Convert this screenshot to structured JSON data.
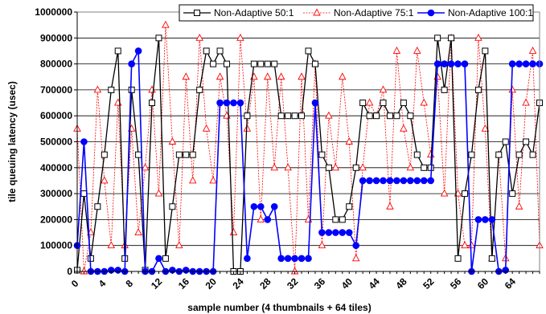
{
  "chart_data": {
    "type": "line",
    "title": "",
    "xlabel": "sample number (4 thumbnails + 64 tiles)",
    "ylabel": "tile queuing latency (usec)",
    "xlim": [
      0,
      68
    ],
    "ylim": [
      0,
      1000000
    ],
    "x_ticks": [
      0,
      4,
      8,
      12,
      16,
      20,
      24,
      28,
      32,
      36,
      40,
      44,
      48,
      52,
      56,
      60,
      64
    ],
    "x_tick_labels": [
      "0",
      "4",
      "8",
      "12",
      "16",
      "20",
      "24",
      "28",
      "32",
      "36",
      "40",
      "44",
      "48",
      "52",
      "56",
      "60",
      "64"
    ],
    "y_ticks": [
      0,
      100000,
      200000,
      300000,
      400000,
      500000,
      600000,
      700000,
      800000,
      900000,
      1000000
    ],
    "y_tick_labels": [
      "0",
      "100000",
      "200000",
      "300000",
      "400000",
      "500000",
      "600000",
      "700000",
      "800000",
      "900000",
      "1000000"
    ],
    "grid": "horizontal",
    "legend_position": "top",
    "series": [
      {
        "name": "Non-Adaptive 50:1",
        "color": "#000000",
        "marker": "square",
        "x": [
          0,
          1,
          2,
          3,
          4,
          5,
          6,
          7,
          8,
          9,
          10,
          11,
          12,
          13,
          14,
          15,
          16,
          17,
          18,
          19,
          20,
          21,
          22,
          23,
          24,
          25,
          26,
          27,
          28,
          29,
          30,
          31,
          32,
          33,
          34,
          35,
          36,
          37,
          38,
          39,
          40,
          41,
          42,
          43,
          44,
          45,
          46,
          47,
          48,
          49,
          50,
          51,
          52,
          53,
          54,
          55,
          56,
          57,
          58,
          59,
          60,
          61,
          62,
          63,
          64,
          65,
          66,
          67,
          68
        ],
        "values": [
          5000,
          300000,
          50000,
          250000,
          450000,
          700000,
          850000,
          50000,
          700000,
          450000,
          5000,
          650000,
          900000,
          50000,
          250000,
          450000,
          450000,
          450000,
          700000,
          850000,
          800000,
          850000,
          800000,
          0,
          0,
          600000,
          800000,
          800000,
          800000,
          800000,
          600000,
          600000,
          600000,
          600000,
          850000,
          800000,
          450000,
          400000,
          200000,
          200000,
          250000,
          400000,
          650000,
          600000,
          600000,
          650000,
          600000,
          600000,
          650000,
          600000,
          450000,
          400000,
          400000,
          900000,
          700000,
          900000,
          50000,
          300000,
          450000,
          700000,
          850000,
          50000,
          450000,
          500000,
          300000,
          450000,
          500000,
          450000,
          650000
        ]
      },
      {
        "name": "Non-Adaptive 75:1",
        "color": "#ff0000",
        "marker": "triangle",
        "x": [
          0,
          1,
          2,
          3,
          4,
          5,
          6,
          7,
          8,
          9,
          10,
          11,
          12,
          13,
          14,
          15,
          16,
          17,
          18,
          19,
          20,
          21,
          22,
          23,
          24,
          25,
          26,
          27,
          28,
          29,
          30,
          31,
          32,
          33,
          34,
          35,
          36,
          37,
          38,
          39,
          40,
          41,
          42,
          43,
          44,
          45,
          46,
          47,
          48,
          49,
          50,
          51,
          52,
          53,
          54,
          55,
          56,
          57,
          58,
          59,
          60,
          61,
          62,
          63,
          64,
          65,
          66,
          67,
          68
        ],
        "values": [
          550000,
          0,
          150000,
          700000,
          350000,
          100000,
          650000,
          100000,
          550000,
          150000,
          400000,
          700000,
          300000,
          950000,
          500000,
          100000,
          750000,
          350000,
          900000,
          550000,
          350000,
          750000,
          600000,
          150000,
          900000,
          550000,
          750000,
          200000,
          750000,
          400000,
          750000,
          400000,
          0,
          750000,
          200000,
          800000,
          100000,
          600000,
          400000,
          750000,
          500000,
          50000,
          400000,
          650000,
          600000,
          700000,
          250000,
          850000,
          550000,
          400000,
          850000,
          650000,
          450000,
          750000,
          300000,
          900000,
          300000,
          100000,
          100000,
          900000,
          550000,
          50000,
          450000,
          50000,
          700000,
          250000,
          650000,
          850000,
          100000
        ]
      },
      {
        "name": "Non-Adaptive 100:1",
        "color": "#0000ff",
        "marker": "circle",
        "x": [
          0,
          1,
          2,
          3,
          4,
          5,
          6,
          7,
          8,
          9,
          10,
          11,
          12,
          13,
          14,
          15,
          16,
          17,
          18,
          19,
          20,
          21,
          22,
          23,
          24,
          25,
          26,
          27,
          28,
          29,
          30,
          31,
          32,
          33,
          34,
          35,
          36,
          37,
          38,
          39,
          40,
          41,
          42,
          43,
          44,
          45,
          46,
          47,
          48,
          49,
          50,
          51,
          52,
          53,
          54,
          55,
          56,
          57,
          58,
          59,
          60,
          61,
          62,
          63,
          64,
          65,
          66,
          67,
          68
        ],
        "values": [
          100000,
          500000,
          0,
          0,
          0,
          5000,
          5000,
          0,
          800000,
          850000,
          0,
          0,
          50000,
          0,
          5000,
          0,
          5000,
          0,
          0,
          0,
          0,
          650000,
          650000,
          650000,
          650000,
          50000,
          250000,
          250000,
          200000,
          250000,
          50000,
          50000,
          50000,
          50000,
          50000,
          650000,
          150000,
          150000,
          150000,
          150000,
          150000,
          100000,
          350000,
          350000,
          350000,
          350000,
          350000,
          350000,
          350000,
          350000,
          350000,
          350000,
          350000,
          800000,
          800000,
          800000,
          800000,
          800000,
          0,
          200000,
          200000,
          200000,
          0,
          5000,
          800000,
          800000,
          800000,
          800000,
          800000
        ]
      }
    ]
  }
}
